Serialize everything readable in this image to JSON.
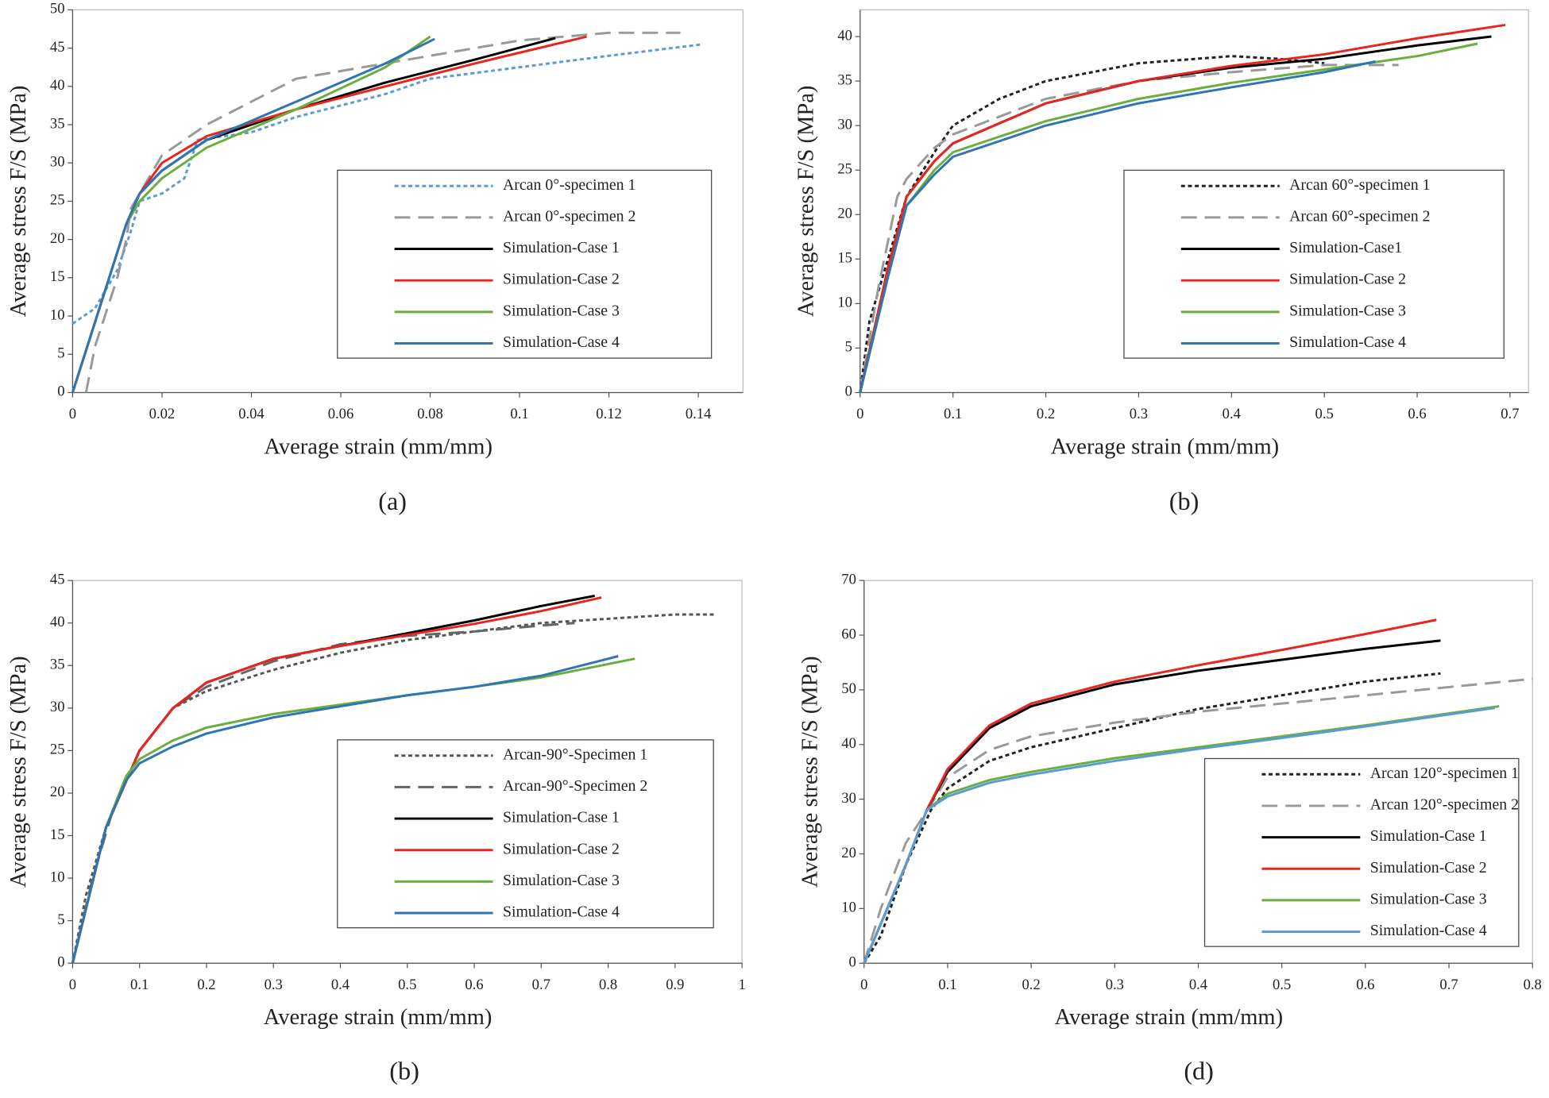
{
  "chart_data": [
    {
      "type": "line",
      "caption": "(a)",
      "x_label": "Average strain (mm/mm)",
      "y_label": "Average stress F/S (MPa)",
      "xlim": [
        0,
        0.15
      ],
      "xticks": [
        0,
        0.02,
        0.04,
        0.06,
        0.08,
        0.1,
        0.12,
        0.14
      ],
      "ylim": [
        0,
        50
      ],
      "yticks": [
        0,
        5,
        10,
        15,
        20,
        25,
        30,
        35,
        40,
        45,
        50
      ],
      "series": [
        {
          "name": "Arcan 0°-specimen 1",
          "color": "#5b9bd5",
          "style": "dotted",
          "x": [
            0,
            0.005,
            0.01,
            0.013,
            0.015,
            0.02,
            0.025,
            0.028,
            0.04,
            0.05,
            0.07,
            0.08,
            0.1,
            0.12,
            0.141
          ],
          "values": [
            9,
            11,
            16,
            21,
            25,
            26,
            28,
            33,
            34,
            36,
            39,
            41,
            42.5,
            44,
            45.5
          ]
        },
        {
          "name": "Arcan 0°-specimen 2",
          "color": "#999999",
          "style": "dashed",
          "x": [
            0.003,
            0.005,
            0.01,
            0.012,
            0.013,
            0.02,
            0.03,
            0.04,
            0.05,
            0.06,
            0.08,
            0.1,
            0.12,
            0.136
          ],
          "values": [
            0,
            6,
            15,
            20,
            24,
            31,
            35,
            38,
            41,
            42,
            44,
            46,
            47,
            47
          ]
        },
        {
          "name": "Simulation-Case 1",
          "color": "#000000",
          "style": "solid",
          "x": [
            0,
            0.012,
            0.015,
            0.02,
            0.03,
            0.05,
            0.07,
            0.09,
            0.108
          ],
          "values": [
            0,
            22,
            26,
            29,
            33,
            37,
            40.5,
            43.5,
            46.3
          ]
        },
        {
          "name": "Simulation-Case 2",
          "color": "#e8251f",
          "style": "solid",
          "x": [
            0,
            0.012,
            0.015,
            0.02,
            0.03,
            0.05,
            0.07,
            0.09,
            0.115
          ],
          "values": [
            0,
            22,
            26,
            30,
            33.5,
            37,
            40,
            43,
            46.5
          ]
        },
        {
          "name": "Simulation-Case 3",
          "color": "#6aaf3d",
          "style": "solid",
          "x": [
            0,
            0.012,
            0.015,
            0.02,
            0.03,
            0.05,
            0.07,
            0.08
          ],
          "values": [
            0,
            22,
            25,
            28,
            32,
            37,
            42.5,
            46.5
          ]
        },
        {
          "name": "Simulation-Case 4",
          "color": "#2e75b6",
          "style": "solid",
          "x": [
            0,
            0.012,
            0.015,
            0.02,
            0.03,
            0.05,
            0.07,
            0.081
          ],
          "values": [
            0,
            22,
            26,
            29,
            33,
            38,
            43,
            46.2
          ]
        }
      ]
    },
    {
      "type": "line",
      "caption": "(b)",
      "x_label": "Average strain (mm/mm)",
      "y_label": "Average stress F/S (MPa)",
      "xlim": [
        0,
        0.72
      ],
      "xticks": [
        0,
        0.1,
        0.2,
        0.3,
        0.4,
        0.5,
        0.6,
        0.7
      ],
      "ylim": [
        0,
        43
      ],
      "yticks": [
        0,
        5,
        10,
        15,
        20,
        25,
        30,
        35,
        40
      ],
      "series": [
        {
          "name": "Arcan 60°-specimen 1",
          "color": "#222222",
          "style": "dotted",
          "x": [
            0,
            0.01,
            0.03,
            0.05,
            0.08,
            0.1,
            0.15,
            0.2,
            0.3,
            0.4,
            0.45,
            0.5
          ],
          "values": [
            0,
            8,
            15,
            22,
            27,
            30,
            33,
            35,
            37,
            37.8,
            37.5,
            37
          ]
        },
        {
          "name": "Arcan 60°-specimen 2",
          "color": "#999999",
          "style": "dashed",
          "x": [
            0,
            0.02,
            0.04,
            0.05,
            0.08,
            0.1,
            0.2,
            0.3,
            0.4,
            0.5,
            0.58
          ],
          "values": [
            0,
            12,
            22,
            24,
            27.5,
            29,
            33,
            35,
            36,
            36.8,
            36.8
          ]
        },
        {
          "name": "Simulation-Case1",
          "color": "#000000",
          "style": "solid",
          "x": [
            0,
            0.03,
            0.05,
            0.08,
            0.1,
            0.2,
            0.3,
            0.4,
            0.5,
            0.6,
            0.68
          ],
          "values": [
            0,
            14,
            22,
            26,
            28,
            32.5,
            35,
            36.5,
            37.5,
            39,
            40
          ]
        },
        {
          "name": "Simulation-Case 2",
          "color": "#e8251f",
          "style": "solid",
          "x": [
            0,
            0.03,
            0.05,
            0.08,
            0.1,
            0.2,
            0.3,
            0.4,
            0.5,
            0.6,
            0.695
          ],
          "values": [
            0,
            14,
            22,
            26,
            28,
            32.5,
            35,
            36.7,
            38,
            39.8,
            41.3
          ]
        },
        {
          "name": "Simulation-Case 3",
          "color": "#6aaf3d",
          "style": "solid",
          "x": [
            0,
            0.03,
            0.05,
            0.08,
            0.1,
            0.2,
            0.3,
            0.4,
            0.5,
            0.6,
            0.665
          ],
          "values": [
            0,
            13,
            21,
            25,
            27,
            30.5,
            33,
            34.8,
            36.3,
            37.8,
            39.2
          ]
        },
        {
          "name": "Simulation-Case 4",
          "color": "#2e75b6",
          "style": "solid",
          "x": [
            0,
            0.03,
            0.05,
            0.08,
            0.1,
            0.2,
            0.3,
            0.4,
            0.5,
            0.555
          ],
          "values": [
            0,
            13,
            21,
            24.5,
            26.5,
            30,
            32.5,
            34.3,
            36,
            37.2
          ]
        }
      ]
    },
    {
      "type": "line",
      "caption": "(b)",
      "x_label": "Average strain (mm/mm)",
      "y_label": "Average stress F/S (MPa)",
      "xlim": [
        0,
        1
      ],
      "xticks": [
        0,
        0.1,
        0.2,
        0.3,
        0.4,
        0.5,
        0.6,
        0.7,
        0.8,
        0.9,
        1
      ],
      "ylim": [
        0,
        45
      ],
      "yticks": [
        0,
        5,
        10,
        15,
        20,
        25,
        30,
        35,
        40,
        45
      ],
      "series": [
        {
          "name": "Arcan-90°-Specimen 1",
          "color": "#555555",
          "style": "dotted",
          "x": [
            0,
            0.02,
            0.05,
            0.1,
            0.15,
            0.2,
            0.3,
            0.4,
            0.5,
            0.6,
            0.7,
            0.8,
            0.9,
            0.96
          ],
          "values": [
            0,
            8,
            16,
            25,
            30,
            32,
            34.5,
            36.5,
            38,
            39,
            40,
            40.5,
            41,
            41
          ]
        },
        {
          "name": "Arcan-90°-Specimen 2",
          "color": "#666666",
          "style": "dashed",
          "x": [
            0,
            0.03,
            0.06,
            0.1,
            0.15,
            0.2,
            0.3,
            0.4,
            0.5,
            0.6,
            0.7,
            0.75
          ],
          "values": [
            0,
            10,
            18,
            25,
            30,
            32.5,
            35.5,
            37.5,
            38.5,
            39,
            39.7,
            40
          ]
        },
        {
          "name": "Simulation-Case 1",
          "color": "#000000",
          "style": "solid",
          "x": [
            0,
            0.05,
            0.1,
            0.15,
            0.2,
            0.3,
            0.4,
            0.5,
            0.6,
            0.7,
            0.78
          ],
          "values": [
            0,
            16,
            25,
            30,
            33,
            35.8,
            37.3,
            38.8,
            40.3,
            42,
            43.2
          ]
        },
        {
          "name": "Simulation-Case 2",
          "color": "#e8251f",
          "style": "solid",
          "x": [
            0,
            0.05,
            0.1,
            0.15,
            0.2,
            0.3,
            0.4,
            0.5,
            0.6,
            0.7,
            0.79
          ],
          "values": [
            0,
            16,
            25,
            30,
            33,
            35.8,
            37.3,
            38.6,
            39.9,
            41.4,
            43
          ]
        },
        {
          "name": "Simulation-Case 3",
          "color": "#6aaf3d",
          "style": "solid",
          "x": [
            0,
            0.05,
            0.08,
            0.1,
            0.15,
            0.2,
            0.3,
            0.4,
            0.5,
            0.6,
            0.7,
            0.84
          ],
          "values": [
            0,
            16,
            22,
            24,
            26.2,
            27.7,
            29.3,
            30.4,
            31.5,
            32.5,
            33.6,
            35.8
          ]
        },
        {
          "name": "Simulation-Case 4",
          "color": "#2e75b6",
          "style": "solid",
          "x": [
            0,
            0.05,
            0.08,
            0.1,
            0.15,
            0.2,
            0.3,
            0.4,
            0.5,
            0.6,
            0.7,
            0.815
          ],
          "values": [
            0,
            16,
            21.5,
            23.5,
            25.5,
            27,
            28.9,
            30.2,
            31.5,
            32.5,
            33.8,
            36.1
          ]
        }
      ]
    },
    {
      "type": "line",
      "caption": "(d)",
      "x_label": "Average strain (mm/mm)",
      "y_label": "Average stress F/S (MPa)",
      "xlim": [
        0,
        0.8
      ],
      "xticks": [
        0,
        0.1,
        0.2,
        0.3,
        0.4,
        0.5,
        0.6,
        0.7,
        0.8
      ],
      "ylim": [
        0,
        70
      ],
      "yticks": [
        0,
        10,
        20,
        30,
        40,
        50,
        60,
        70
      ],
      "series": [
        {
          "name": "Arcan 120°-specimen 1",
          "color": "#222222",
          "style": "dotted",
          "x": [
            0,
            0.02,
            0.05,
            0.08,
            0.1,
            0.15,
            0.2,
            0.3,
            0.4,
            0.5,
            0.6,
            0.69
          ],
          "values": [
            0,
            5,
            18,
            28,
            32,
            37,
            39.5,
            43,
            46.5,
            49,
            51.5,
            53
          ]
        },
        {
          "name": "Arcan 120°-specimen 2",
          "color": "#999999",
          "style": "dashed",
          "x": [
            0,
            0.02,
            0.05,
            0.08,
            0.1,
            0.15,
            0.2,
            0.3,
            0.4,
            0.5,
            0.6,
            0.7,
            0.8
          ],
          "values": [
            0,
            10,
            22,
            29,
            34,
            39,
            41.5,
            44,
            46,
            47.5,
            49,
            50.5,
            52
          ]
        },
        {
          "name": "Simulation-Case 1",
          "color": "#000000",
          "style": "solid",
          "x": [
            0,
            0.05,
            0.075,
            0.1,
            0.15,
            0.2,
            0.3,
            0.4,
            0.5,
            0.6,
            0.69
          ],
          "values": [
            0,
            18,
            28,
            35,
            43,
            47,
            51,
            53.5,
            55.5,
            57.5,
            59
          ]
        },
        {
          "name": "Simulation-Case 2",
          "color": "#e8251f",
          "style": "solid",
          "x": [
            0,
            0.05,
            0.075,
            0.1,
            0.15,
            0.2,
            0.3,
            0.4,
            0.5,
            0.6,
            0.685
          ],
          "values": [
            0,
            18,
            28,
            35.5,
            43.5,
            47.5,
            51.5,
            54.5,
            57.3,
            60.2,
            62.8
          ]
        },
        {
          "name": "Simulation-Case 3",
          "color": "#6aaf3d",
          "style": "solid",
          "x": [
            0,
            0.05,
            0.075,
            0.1,
            0.15,
            0.2,
            0.3,
            0.4,
            0.5,
            0.6,
            0.76
          ],
          "values": [
            0,
            18,
            28,
            31,
            33.5,
            35,
            37.5,
            39.5,
            41.5,
            43.5,
            47
          ]
        },
        {
          "name": "Simulation-Case 4",
          "color": "#5b9bd5",
          "style": "solid",
          "x": [
            0,
            0.05,
            0.075,
            0.1,
            0.15,
            0.2,
            0.3,
            0.4,
            0.5,
            0.6,
            0.755
          ],
          "values": [
            0,
            18,
            28,
            30.5,
            33,
            34.5,
            37,
            39.2,
            41.2,
            43.3,
            46.7
          ]
        }
      ]
    }
  ]
}
